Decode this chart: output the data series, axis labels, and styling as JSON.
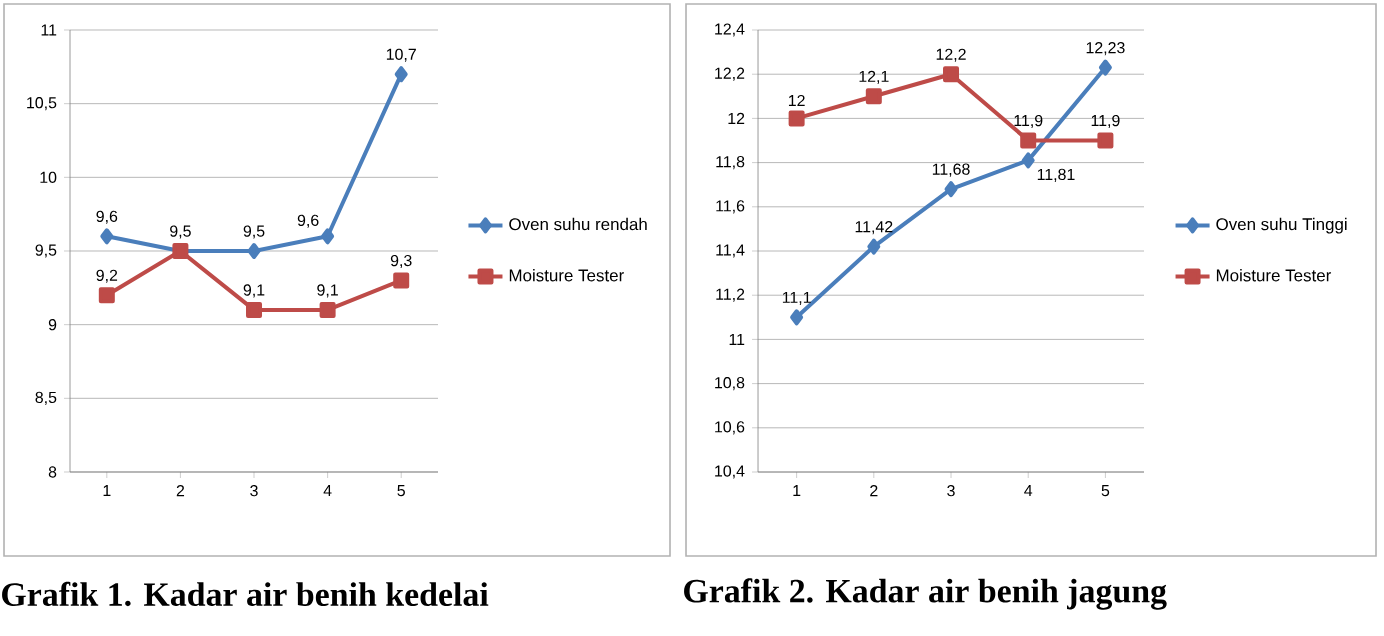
{
  "chart_data": [
    {
      "type": "line",
      "title": "Grafik 1. Kadar air benih kedelai",
      "categories": [
        "1",
        "2",
        "3",
        "4",
        "5"
      ],
      "ylim": [
        8,
        11
      ],
      "yticks": [
        8,
        {
          "value": 8.5,
          "label": "8,5"
        },
        9,
        {
          "value": 9.5,
          "label": "9,5"
        },
        10,
        {
          "value": 10.5,
          "label": "10,5"
        },
        11
      ],
      "grid": "y",
      "legend": "right",
      "series": [
        {
          "name": "Oven suhu rendah",
          "color": "#4a7ebb",
          "marker": "diamond",
          "values": [
            9.6,
            9.5,
            9.5,
            9.6,
            10.7
          ],
          "value_labels": [
            "9,6",
            "9,5",
            "9,5",
            "9,6",
            "10,7"
          ]
        },
        {
          "name": "Moisture Tester",
          "color": "#be4b48",
          "marker": "square",
          "values": [
            9.2,
            9.5,
            9.1,
            9.1,
            9.3
          ],
          "value_labels": [
            "9,2",
            null,
            "9,1",
            "9,1",
            "9,3"
          ]
        }
      ]
    },
    {
      "type": "line",
      "title": "Grafik 2. Kadar air benih jagung",
      "categories": [
        "1",
        "2",
        "3",
        "4",
        "5"
      ],
      "ylim": [
        10.4,
        12.4
      ],
      "yticks": [
        {
          "value": 10.4,
          "label": "10,4"
        },
        {
          "value": 10.6,
          "label": "10,6"
        },
        {
          "value": 10.8,
          "label": "10,8"
        },
        11,
        {
          "value": 11.2,
          "label": "11,2"
        },
        {
          "value": 11.4,
          "label": "11,4"
        },
        {
          "value": 11.6,
          "label": "11,6"
        },
        {
          "value": 11.8,
          "label": "11,8"
        },
        12,
        {
          "value": 12.2,
          "label": "12,2"
        },
        {
          "value": 12.4,
          "label": "12,4"
        }
      ],
      "grid": "y",
      "legend": "right",
      "series": [
        {
          "name": "Oven suhu Tinggi",
          "color": "#4a7ebb",
          "marker": "diamond",
          "values": [
            11.1,
            11.42,
            11.68,
            11.81,
            12.23
          ],
          "value_labels": [
            "11,1",
            "11,42",
            "11,68",
            "11,81",
            "12,23"
          ]
        },
        {
          "name": "Moisture Tester",
          "color": "#be4b48",
          "marker": "square",
          "values": [
            12.0,
            12.1,
            12.2,
            11.9,
            11.9
          ],
          "value_labels": [
            "12",
            "12,1",
            "12,2",
            "11,9",
            "11,9"
          ]
        }
      ]
    }
  ]
}
